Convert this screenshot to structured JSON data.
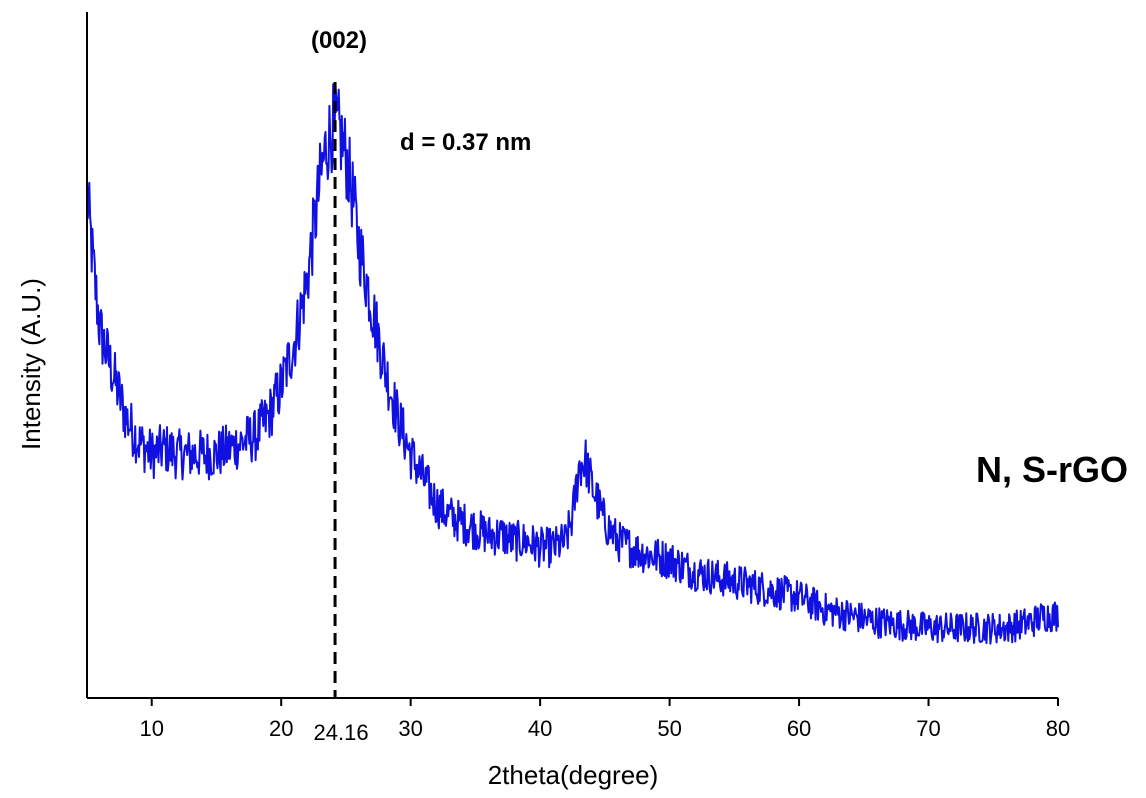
{
  "chart_data": {
    "type": "line",
    "xlabel": "2theta(degree)",
    "ylabel": "Intensity (A.U.)",
    "xlim": [
      5,
      80
    ],
    "ylim": [
      0,
      100
    ],
    "x_ticks": [
      10,
      20,
      30,
      40,
      50,
      60,
      70,
      80
    ],
    "y_ticks": [],
    "grid": false,
    "line_color": "#1010e0",
    "marker_line": {
      "x": 24.16,
      "label": "24.16",
      "style": "dashed"
    },
    "annotations": {
      "peak_label": "(002)",
      "d_spacing": "d = 0.37 nm",
      "sample": "N, S-rGO"
    },
    "series": [
      {
        "x": [
          5,
          5.5,
          6,
          7,
          8,
          9,
          10,
          11,
          12,
          13,
          14,
          15,
          16,
          17,
          18,
          19,
          20,
          21,
          22,
          22.5,
          23,
          23.5,
          24,
          24.5,
          25,
          25.5,
          26,
          27,
          28,
          29,
          30,
          31,
          32,
          33,
          34,
          35,
          36,
          37,
          38,
          39,
          40,
          41,
          42,
          42.5,
          43,
          43.5,
          44,
          45,
          46,
          48,
          50,
          52,
          54,
          56,
          58,
          60,
          62,
          64,
          66,
          68,
          70,
          72,
          74,
          76,
          78,
          79,
          80
        ],
        "values": [
          80,
          68,
          58,
          51,
          44,
          40,
          38,
          39,
          38,
          38,
          38,
          38,
          39,
          40,
          41,
          44,
          49,
          56,
          66,
          74,
          82,
          88,
          91,
          90,
          86,
          80,
          72,
          62,
          52,
          44,
          38,
          34,
          30,
          28,
          27,
          26,
          25,
          25,
          24,
          24,
          23,
          23,
          24,
          28,
          36,
          37,
          33,
          27,
          24,
          22,
          21,
          19,
          18,
          17,
          16,
          15,
          13,
          12,
          11,
          10.5,
          10,
          10,
          10,
          10,
          11,
          12,
          12
        ]
      }
    ]
  }
}
